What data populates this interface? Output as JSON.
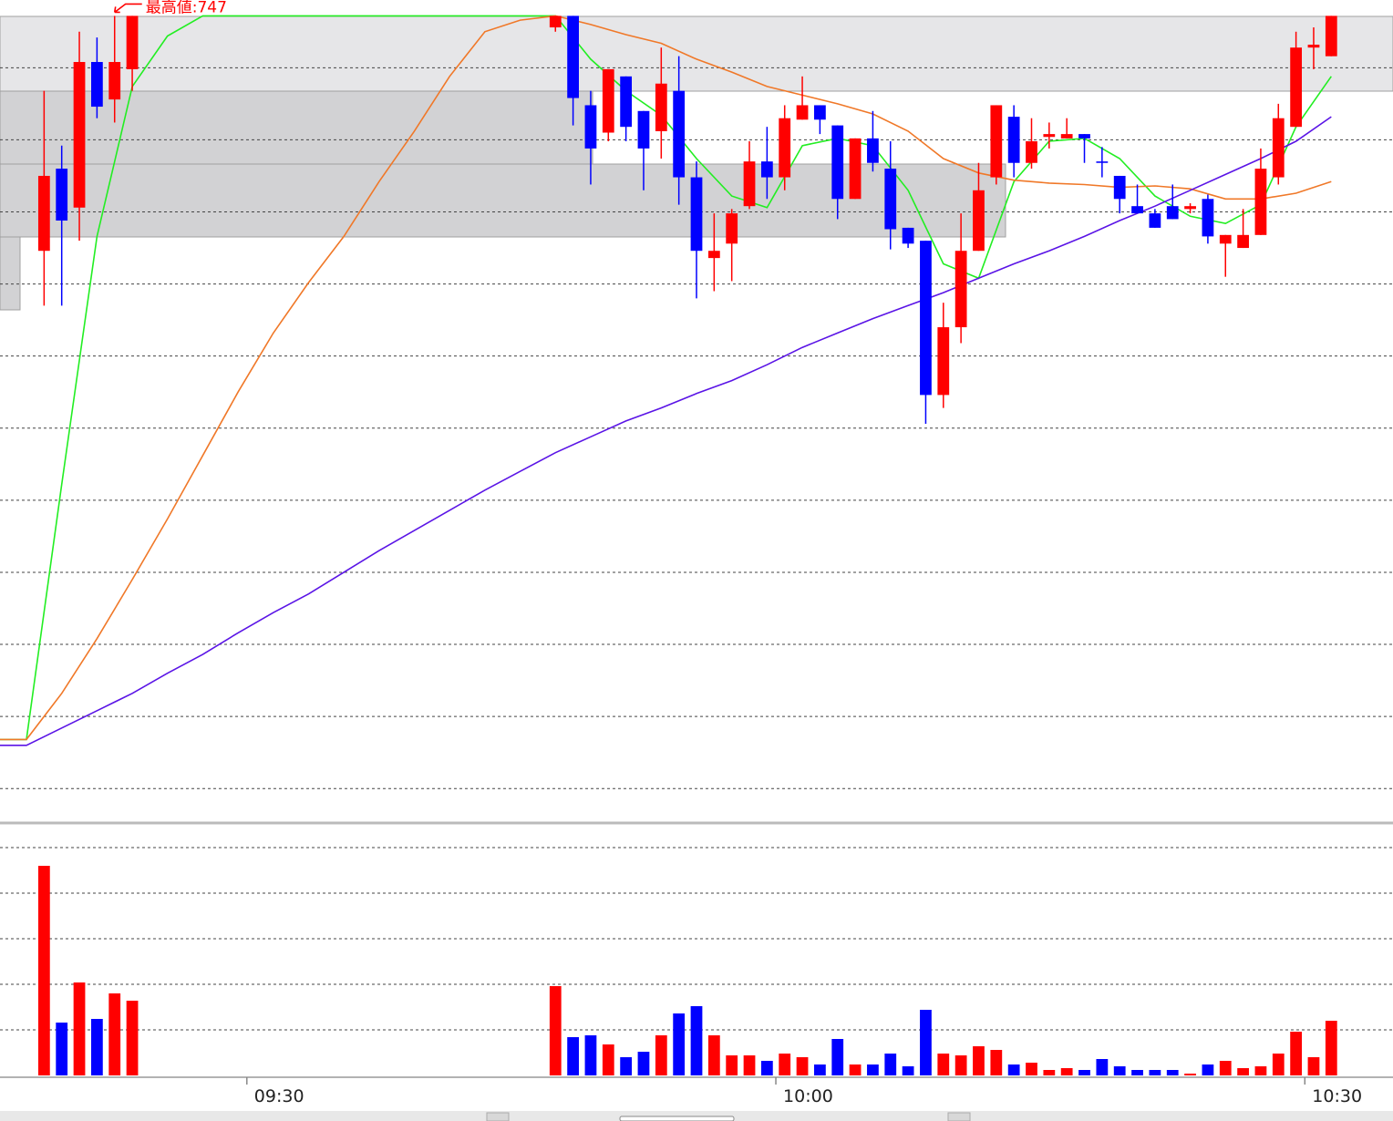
{
  "chart_data": {
    "type": "candlestick",
    "annotation": {
      "text": "最高値:747",
      "x": "09:22",
      "y": 747
    },
    "up_color": "#ff0000",
    "down_color": "#0000ff",
    "xlim": [
      "09:16",
      "10:35"
    ],
    "xticks": [
      "09:30",
      "10:00",
      "10:30"
    ],
    "ylim": [
      691.2,
      748.1
    ],
    "ygrid": [
      743.4,
      738.4,
      733.4,
      728.4,
      723.4,
      718.4,
      713.4,
      708.4,
      703.4,
      698.4,
      693.4
    ],
    "volume_lim": [
      0,
      27500
    ],
    "volume_grid": [
      5000,
      10000,
      15000,
      20000,
      25000
    ],
    "x": [
      "09:18",
      "09:19",
      "09:20",
      "09:21",
      "09:22",
      "09:23",
      "09:47",
      "09:48",
      "09:49",
      "09:50",
      "09:51",
      "09:52",
      "09:53",
      "09:54",
      "09:55",
      "09:56",
      "09:57",
      "09:58",
      "09:59",
      "10:00",
      "10:01",
      "10:02",
      "10:03",
      "10:04",
      "10:05",
      "10:06",
      "10:07",
      "10:08",
      "10:09",
      "10:10",
      "10:11",
      "10:12",
      "10:13",
      "10:14",
      "10:15",
      "10:16",
      "10:17",
      "10:18",
      "10:19",
      "10:20",
      "10:21",
      "10:22",
      "10:23",
      "10:24",
      "10:25",
      "10:26",
      "10:27",
      "10:28",
      "10:29",
      "10:30",
      "10:31"
    ],
    "open": [
      730.7,
      736.4,
      733.7,
      743.8,
      741.2,
      743.3,
      746.2,
      747.0,
      740.8,
      738.9,
      742.8,
      740.4,
      739.0,
      741.8,
      735.8,
      730.2,
      731.2,
      733.8,
      736.9,
      735.8,
      739.8,
      740.8,
      739.4,
      734.3,
      738.5,
      736.4,
      732.3,
      731.4,
      720.7,
      725.4,
      730.7,
      735.8,
      740.0,
      736.8,
      738.6,
      738.5,
      738.8,
      736.9,
      735.9,
      733.8,
      733.3,
      733.8,
      733.6,
      734.3,
      731.2,
      730.9,
      731.8,
      735.8,
      739.3,
      744.8,
      744.2
    ],
    "high": [
      741.8,
      738.0,
      745.9,
      745.5,
      747.0,
      747.0,
      747.0,
      747.0,
      741.8,
      743.3,
      742.8,
      740.4,
      744.8,
      744.2,
      736.9,
      733.3,
      733.6,
      738.3,
      739.3,
      740.8,
      742.8,
      740.8,
      739.4,
      738.5,
      740.4,
      738.3,
      732.3,
      731.4,
      727.1,
      733.3,
      736.8,
      740.8,
      740.8,
      739.9,
      739.6,
      739.9,
      738.8,
      737.9,
      735.9,
      735.3,
      733.6,
      735.3,
      734.0,
      734.6,
      731.8,
      733.6,
      737.8,
      740.9,
      745.9,
      746.2,
      747.0
    ],
    "low": [
      726.9,
      726.9,
      731.4,
      739.9,
      739.6,
      741.8,
      745.9,
      739.4,
      735.3,
      738.3,
      738.3,
      734.9,
      737.1,
      733.9,
      727.4,
      727.9,
      728.6,
      733.6,
      734.3,
      734.9,
      739.8,
      738.8,
      732.9,
      734.3,
      736.2,
      730.8,
      730.9,
      718.7,
      719.8,
      724.3,
      730.7,
      735.3,
      735.8,
      736.4,
      737.8,
      738.5,
      736.8,
      735.8,
      733.3,
      733.3,
      732.3,
      732.9,
      733.3,
      731.2,
      728.9,
      730.9,
      731.8,
      735.3,
      739.3,
      743.3,
      744.2
    ],
    "close": [
      735.9,
      732.8,
      743.8,
      740.7,
      743.8,
      747.0,
      747.0,
      741.3,
      737.8,
      743.3,
      739.3,
      737.8,
      742.3,
      735.8,
      730.7,
      730.7,
      733.3,
      736.9,
      735.8,
      739.9,
      740.8,
      739.8,
      734.3,
      738.5,
      736.8,
      732.2,
      731.2,
      720.7,
      725.4,
      730.7,
      734.9,
      740.8,
      736.8,
      738.3,
      738.8,
      738.8,
      738.5,
      736.8,
      734.3,
      733.3,
      732.3,
      732.9,
      733.8,
      731.7,
      731.8,
      731.8,
      736.4,
      739.9,
      744.8,
      745.0,
      747.0
    ],
    "volume": [
      23000,
      5800,
      10200,
      6200,
      9000,
      8200,
      9800,
      4200,
      4400,
      3400,
      2000,
      2600,
      4400,
      6800,
      7600,
      4400,
      2200,
      2200,
      1600,
      2400,
      2000,
      1200,
      4000,
      1200,
      1200,
      2400,
      1000,
      7200,
      2400,
      2200,
      3200,
      2800,
      1200,
      1400,
      600,
      800,
      600,
      1800,
      1000,
      600,
      600,
      600,
      200,
      1200,
      1600,
      800,
      1000,
      2400,
      4800,
      2000,
      6000
    ],
    "ma_x": [
      "09:15",
      "09:17",
      "09:19",
      "09:21",
      "09:23",
      "09:25",
      "09:27",
      "09:29",
      "09:31",
      "09:33",
      "09:35",
      "09:37",
      "09:39",
      "09:41",
      "09:43",
      "09:45",
      "09:47",
      "09:49",
      "09:51",
      "09:53",
      "09:55",
      "09:57",
      "09:59",
      "10:01",
      "10:03",
      "10:05",
      "10:07",
      "10:09",
      "10:11",
      "10:13",
      "10:15",
      "10:17",
      "10:19",
      "10:21",
      "10:23",
      "10:25",
      "10:27",
      "10:29",
      "10:31"
    ],
    "moving_averages": [
      {
        "color": "#22ee22",
        "values": [
          696.8,
          696.8,
          714.5,
          731.7,
          742.1,
          745.6,
          747.0,
          747.0,
          747.0,
          747.0,
          747.0,
          747.0,
          747.0,
          747.0,
          747.0,
          747.0,
          747.0,
          744.0,
          741.8,
          740.1,
          737.1,
          734.5,
          733.7,
          738.0,
          738.5,
          738.0,
          734.9,
          729.8,
          728.8,
          735.5,
          738.3,
          738.5,
          737.1,
          734.5,
          733.1,
          732.6,
          733.9,
          739.3,
          742.8
        ]
      },
      {
        "color": "#f07828",
        "values": [
          696.8,
          696.8,
          700.0,
          703.8,
          707.9,
          712.1,
          716.5,
          720.9,
          725.0,
          728.5,
          731.7,
          735.5,
          739.0,
          742.8,
          745.9,
          746.7,
          747.0,
          746.4,
          745.7,
          745.1,
          744.0,
          743.1,
          742.1,
          741.5,
          740.9,
          740.2,
          739.0,
          737.1,
          736.1,
          735.6,
          735.4,
          735.3,
          735.1,
          735.2,
          735.0,
          734.3,
          734.3,
          734.7,
          735.5
        ]
      },
      {
        "color": "#5a14e6",
        "values": [
          696.4,
          696.4,
          697.6,
          698.8,
          700.0,
          701.4,
          702.7,
          704.2,
          705.6,
          706.9,
          708.4,
          709.9,
          711.3,
          712.7,
          714.1,
          715.4,
          716.7,
          717.8,
          718.9,
          719.8,
          720.8,
          721.7,
          722.8,
          724.0,
          725.0,
          726.0,
          726.9,
          727.8,
          728.8,
          729.8,
          730.7,
          731.7,
          732.8,
          733.8,
          734.9,
          736.0,
          737.1,
          738.3,
          740.0
        ]
      }
    ]
  }
}
